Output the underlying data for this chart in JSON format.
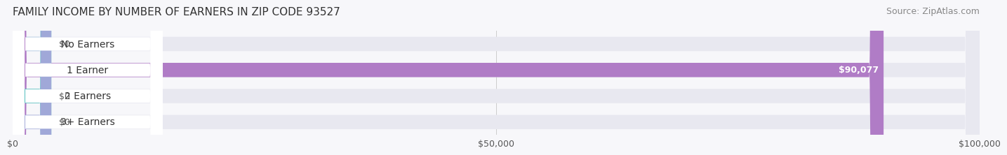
{
  "title": "FAMILY INCOME BY NUMBER OF EARNERS IN ZIP CODE 93527",
  "source": "Source: ZipAtlas.com",
  "categories": [
    "No Earners",
    "1 Earner",
    "2 Earners",
    "3+ Earners"
  ],
  "values": [
    0,
    90077,
    0,
    0
  ],
  "bar_colors": [
    "#a8c4e0",
    "#b07cc6",
    "#4dbdbd",
    "#a0a8d8"
  ],
  "label_colors": [
    "#a8c4e0",
    "#b07cc6",
    "#4dbdbd",
    "#a0a8d8"
  ],
  "bar_bg_color": "#f0f0f5",
  "value_labels": [
    "$0",
    "$90,077",
    "$0",
    "$0"
  ],
  "xlim": [
    0,
    100000
  ],
  "xticks": [
    0,
    50000,
    100000
  ],
  "xtick_labels": [
    "$0",
    "$50,000",
    "$100,000"
  ],
  "background_color": "#f7f7fa",
  "title_fontsize": 11,
  "source_fontsize": 9,
  "bar_label_fontsize": 10,
  "value_label_fontsize": 9
}
